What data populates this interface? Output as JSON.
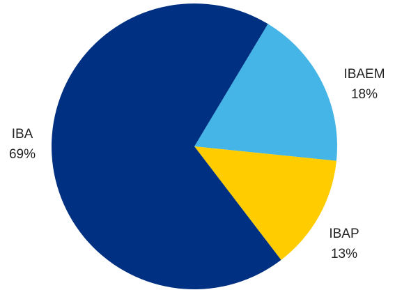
{
  "chart_data": {
    "type": "pie",
    "title": "",
    "start_angle_deg": -59,
    "direction": "clockwise",
    "slices": [
      {
        "label": "IBAEM",
        "value": 18,
        "value_label": "18%",
        "color": "#45B4E6"
      },
      {
        "label": "IBAP",
        "value": 13,
        "value_label": "13%",
        "color": "#FFCC00"
      },
      {
        "label": "IBA",
        "value": 69,
        "value_label": "69%",
        "color": "#003082"
      }
    ]
  }
}
